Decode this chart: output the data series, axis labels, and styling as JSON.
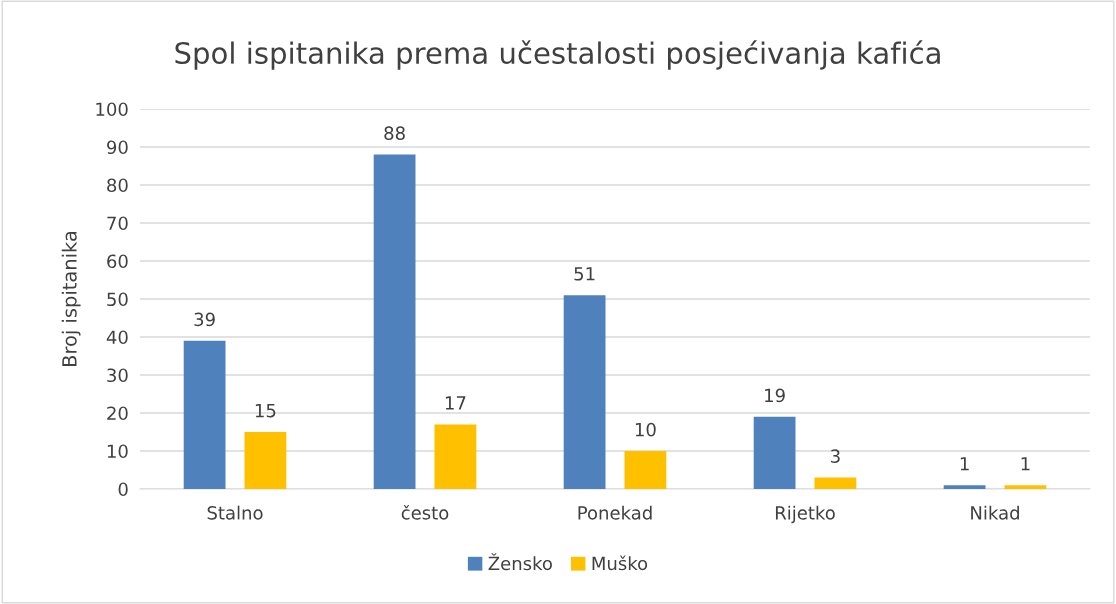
{
  "chart_data": {
    "type": "bar",
    "title": "Spol ispitanika prema učestalosti posjećivanja kafića",
    "ylabel": "Broj ispitanika",
    "categories": [
      "Stalno",
      "često",
      "Ponekad",
      "Rijetko",
      "Nikad"
    ],
    "series": [
      {
        "name": "Žensko",
        "color": "#4f81bd",
        "values": [
          39,
          88,
          51,
          19,
          1
        ]
      },
      {
        "name": "Muško",
        "color": "#ffc000",
        "values": [
          15,
          17,
          10,
          3,
          1
        ]
      }
    ],
    "ylim": [
      0,
      100
    ],
    "yticks": [
      0,
      10,
      20,
      30,
      40,
      50,
      60,
      70,
      80,
      90,
      100
    ],
    "grid": "y",
    "legend": "bottom",
    "data_labels": true
  }
}
